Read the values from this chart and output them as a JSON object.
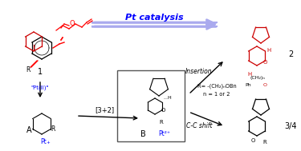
{
  "title": "Pt catalysis",
  "title_color": "#0000FF",
  "bg_color": "#FFFFFF",
  "arrow_color": "#8888FF",
  "black": "#000000",
  "red": "#FF0000",
  "blue": "#0000FF",
  "label_1": "1",
  "label_A": "A",
  "label_B": "B",
  "label_2": "2",
  "label_34": "3/4",
  "label_R": "R",
  "label_pt": "\"Pt(II)\"",
  "label_32": "[3+2]",
  "label_insertion": "Insertion",
  "label_ccshift": "C-C shift",
  "label_R_def": "R= -(CH₂)ₙOBn",
  "label_n": "n = 1 or 2",
  "label_pt2": "Pt²⁺"
}
